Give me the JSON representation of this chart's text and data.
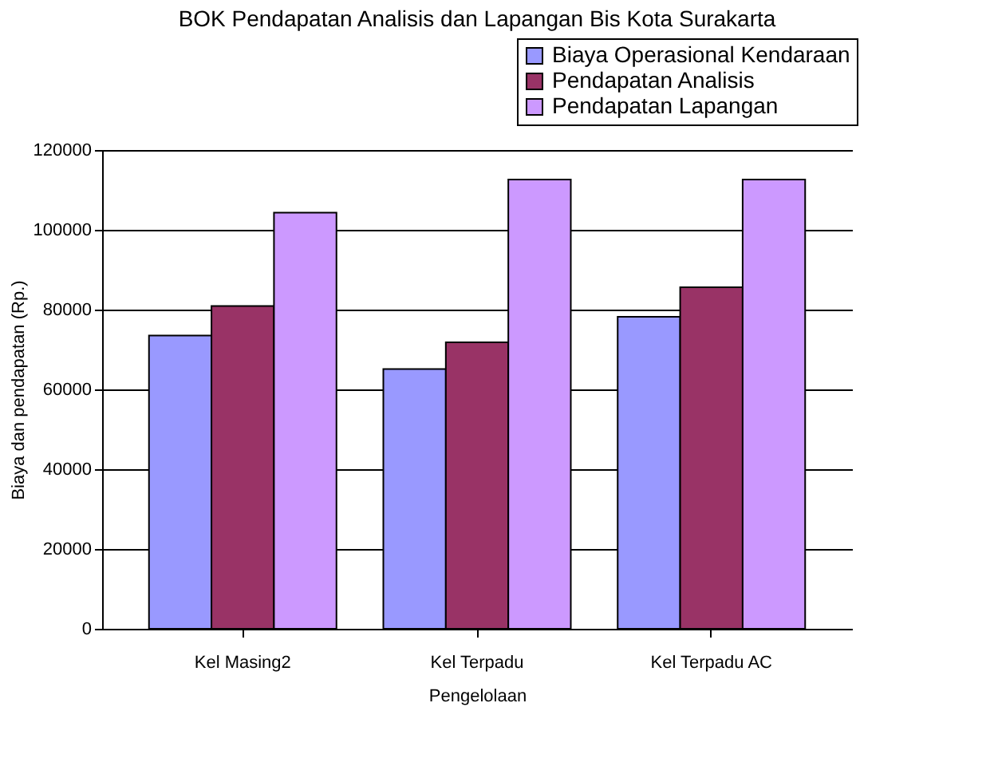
{
  "chart_data": {
    "type": "bar",
    "title": "BOK Pendapatan Analisis dan Lapangan Bis Kota Surakarta",
    "xlabel": "Pengelolaan",
    "ylabel": "Biaya dan pendapatan (Rp.)",
    "categories": [
      "Kel Masing2",
      "Kel Terpadu",
      "Kel Terpadu AC"
    ],
    "series": [
      {
        "name": "Biaya Operasional Kendaraan",
        "color": "#9999ff",
        "values": [
          73500,
          65100,
          78200
        ]
      },
      {
        "name": "Pendapatan Analisis",
        "color": "#993366",
        "values": [
          80900,
          71800,
          85600
        ]
      },
      {
        "name": "Pendapatan Lapangan",
        "color": "#cc99ff",
        "values": [
          104300,
          112600,
          112600
        ]
      }
    ],
    "ylim": [
      0,
      120000
    ],
    "yticks": [
      0,
      20000,
      40000,
      60000,
      80000,
      100000,
      120000
    ],
    "grid": "y",
    "legend": "top right"
  }
}
